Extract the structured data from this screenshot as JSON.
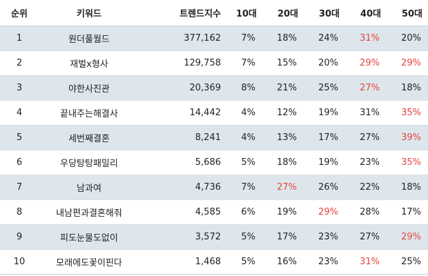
{
  "columns": {
    "rank": "순위",
    "keyword": "키워드",
    "trend_index": "트렌드지수",
    "age10": "10대",
    "age20": "20대",
    "age30": "30대",
    "age40": "40대",
    "age50": "50대"
  },
  "highlight_color": "#e8443a",
  "shade_color": "#dde6ec",
  "rows": [
    {
      "rank": "1",
      "keyword": "원더풀월드",
      "trend_index": "377,162",
      "age10": "7%",
      "age20": "18%",
      "age30": "24%",
      "age40": "31%",
      "age50": "20%",
      "hot": [
        "age40"
      ]
    },
    {
      "rank": "2",
      "keyword": "재벌x형사",
      "trend_index": "129,758",
      "age10": "7%",
      "age20": "15%",
      "age30": "20%",
      "age40": "29%",
      "age50": "29%",
      "hot": [
        "age40",
        "age50"
      ]
    },
    {
      "rank": "3",
      "keyword": "야한사진관",
      "trend_index": "20,369",
      "age10": "8%",
      "age20": "21%",
      "age30": "25%",
      "age40": "27%",
      "age50": "18%",
      "hot": [
        "age40"
      ]
    },
    {
      "rank": "4",
      "keyword": "끝내주는해결사",
      "trend_index": "14,442",
      "age10": "4%",
      "age20": "12%",
      "age30": "19%",
      "age40": "31%",
      "age50": "35%",
      "hot": [
        "age50"
      ]
    },
    {
      "rank": "5",
      "keyword": "세번째결혼",
      "trend_index": "8,241",
      "age10": "4%",
      "age20": "13%",
      "age30": "17%",
      "age40": "27%",
      "age50": "39%",
      "hot": [
        "age50"
      ]
    },
    {
      "rank": "6",
      "keyword": "우당탕탕패밀리",
      "trend_index": "5,686",
      "age10": "5%",
      "age20": "18%",
      "age30": "19%",
      "age40": "23%",
      "age50": "35%",
      "hot": [
        "age50"
      ]
    },
    {
      "rank": "7",
      "keyword": "남과여",
      "trend_index": "4,736",
      "age10": "7%",
      "age20": "27%",
      "age30": "26%",
      "age40": "22%",
      "age50": "18%",
      "hot": [
        "age20"
      ]
    },
    {
      "rank": "8",
      "keyword": "내남편과결혼해줘",
      "trend_index": "4,585",
      "age10": "6%",
      "age20": "19%",
      "age30": "29%",
      "age40": "28%",
      "age50": "17%",
      "hot": [
        "age30"
      ]
    },
    {
      "rank": "9",
      "keyword": "피도눈물도없이",
      "trend_index": "3,572",
      "age10": "5%",
      "age20": "17%",
      "age30": "23%",
      "age40": "27%",
      "age50": "29%",
      "hot": [
        "age50"
      ]
    },
    {
      "rank": "10",
      "keyword": "모래에도꽃이핀다",
      "trend_index": "1,468",
      "age10": "5%",
      "age20": "16%",
      "age30": "23%",
      "age40": "31%",
      "age50": "25%",
      "hot": [
        "age40"
      ]
    }
  ]
}
